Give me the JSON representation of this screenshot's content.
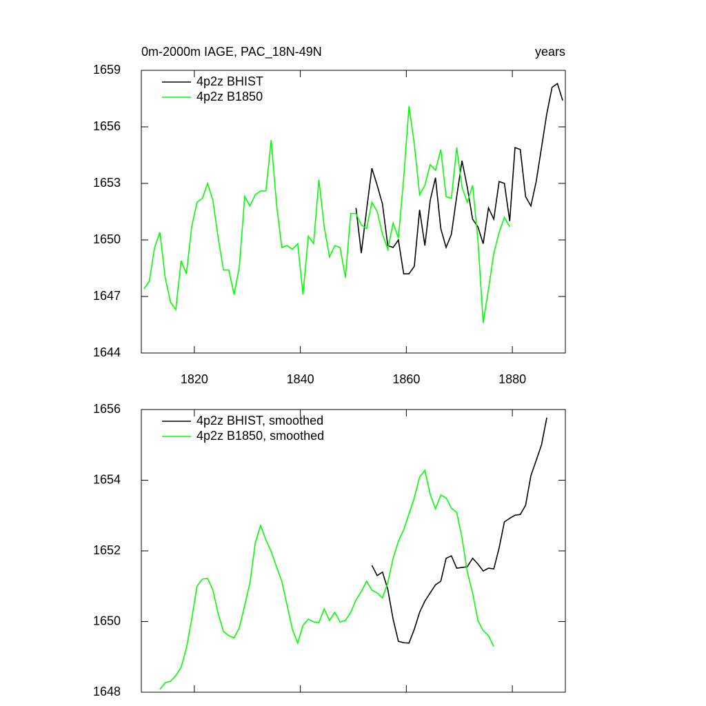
{
  "chart_data": [
    {
      "type": "line",
      "title": "0m-2000m IAGE, PAC_18N-49N",
      "right_title": "years",
      "xlim": [
        1810,
        1890
      ],
      "xticks": [
        1820,
        1840,
        1860,
        1880
      ],
      "ylim": [
        1644,
        1659
      ],
      "yticks": [
        1644,
        1647,
        1650,
        1653,
        1656,
        1659
      ],
      "legend": "upper left",
      "x": [
        1810.5,
        1811.5,
        1812.5,
        1813.5,
        1814.5,
        1815.5,
        1816.5,
        1817.5,
        1818.5,
        1819.5,
        1820.5,
        1821.5,
        1822.5,
        1823.5,
        1824.5,
        1825.5,
        1826.5,
        1827.5,
        1828.5,
        1829.5,
        1830.5,
        1831.5,
        1832.5,
        1833.5,
        1834.5,
        1835.5,
        1836.5,
        1837.5,
        1838.5,
        1839.5,
        1840.5,
        1841.5,
        1842.5,
        1843.5,
        1844.5,
        1845.5,
        1846.5,
        1847.5,
        1848.5,
        1849.5,
        1850.5,
        1851.5,
        1852.5,
        1853.5,
        1854.5,
        1855.5,
        1856.5,
        1857.5,
        1858.5,
        1859.5,
        1860.5,
        1861.5,
        1862.5,
        1863.5,
        1864.5,
        1865.5,
        1866.5,
        1867.5,
        1868.5,
        1869.5,
        1870.5,
        1871.5,
        1872.5,
        1873.5,
        1874.5,
        1875.5,
        1876.5,
        1877.5,
        1878.5,
        1879.5,
        1880.5,
        1881.5,
        1882.5,
        1883.5,
        1884.5,
        1885.5,
        1886.5,
        1887.5,
        1888.5,
        1889.5
      ],
      "series": [
        {
          "name": "4p2z BHIST",
          "color": "#000000",
          "values": [
            null,
            null,
            null,
            null,
            null,
            null,
            null,
            null,
            null,
            null,
            null,
            null,
            null,
            null,
            null,
            null,
            null,
            null,
            null,
            null,
            null,
            null,
            null,
            null,
            null,
            null,
            null,
            null,
            null,
            null,
            null,
            null,
            null,
            null,
            null,
            null,
            null,
            null,
            null,
            null,
            1651.7,
            1649.3,
            1651.6,
            1653.8,
            1652.9,
            1651.9,
            1649.7,
            1649.6,
            1650.0,
            1648.2,
            1648.2,
            1648.6,
            1651.6,
            1649.7,
            1652.1,
            1653.3,
            1650.6,
            1649.6,
            1650.3,
            1652.3,
            1654.2,
            1652.8,
            1651.1,
            1650.7,
            1649.8,
            1651.7,
            1651.1,
            1653.1,
            1653.0,
            1651.0,
            1654.9,
            1654.8,
            1652.3,
            1651.8,
            1653.1,
            1654.9,
            1656.7,
            1658.1,
            1658.3,
            1657.4
          ]
        },
        {
          "name": "4p2z B1850",
          "color": "#00ff00",
          "values": [
            1647.4,
            1647.8,
            1649.6,
            1650.4,
            1648.0,
            1646.7,
            1646.3,
            1648.9,
            1648.2,
            1650.7,
            1652.0,
            1652.2,
            1653.0,
            1652.1,
            1650.1,
            1648.4,
            1648.4,
            1647.1,
            1648.6,
            1652.3,
            1651.8,
            1652.4,
            1652.6,
            1652.6,
            1655.3,
            1651.9,
            1649.6,
            1649.7,
            1649.5,
            1649.8,
            1647.1,
            1650.2,
            1649.8,
            1653.2,
            1650.7,
            1649.1,
            1649.7,
            1649.6,
            1648.0,
            1651.4,
            1651.4,
            1650.8,
            1650.6,
            1652.0,
            1651.5,
            1650.3,
            1649.5,
            1650.9,
            1650.1,
            1653.3,
            1657.1,
            1655.1,
            1652.4,
            1652.9,
            1654.0,
            1653.7,
            1654.8,
            1652.3,
            1652.2,
            1654.9,
            1652.8,
            1652.0,
            1652.9,
            1650.0,
            1645.6,
            1647.4,
            1649.3,
            1650.4,
            1651.2,
            1650.7,
            null,
            null,
            null,
            null,
            null,
            null,
            null,
            null,
            null,
            null
          ]
        }
      ]
    },
    {
      "type": "line",
      "xlim": [
        1810,
        1890
      ],
      "xticks": [
        1820,
        1840,
        1860,
        1880
      ],
      "ylim": [
        1648,
        1656
      ],
      "yticks": [
        1648,
        1650,
        1652,
        1654,
        1656
      ],
      "legend": "upper left",
      "x": [
        1810.5,
        1811.5,
        1812.5,
        1813.5,
        1814.5,
        1815.5,
        1816.5,
        1817.5,
        1818.5,
        1819.5,
        1820.5,
        1821.5,
        1822.5,
        1823.5,
        1824.5,
        1825.5,
        1826.5,
        1827.5,
        1828.5,
        1829.5,
        1830.5,
        1831.5,
        1832.5,
        1833.5,
        1834.5,
        1835.5,
        1836.5,
        1837.5,
        1838.5,
        1839.5,
        1840.5,
        1841.5,
        1842.5,
        1843.5,
        1844.5,
        1845.5,
        1846.5,
        1847.5,
        1848.5,
        1849.5,
        1850.5,
        1851.5,
        1852.5,
        1853.5,
        1854.5,
        1855.5,
        1856.5,
        1857.5,
        1858.5,
        1859.5,
        1860.5,
        1861.5,
        1862.5,
        1863.5,
        1864.5,
        1865.5,
        1866.5,
        1867.5,
        1868.5,
        1869.5,
        1870.5,
        1871.5,
        1872.5,
        1873.5,
        1874.5,
        1875.5,
        1876.5,
        1877.5,
        1878.5,
        1879.5,
        1880.5,
        1881.5,
        1882.5,
        1883.5,
        1884.5,
        1885.5,
        1886.5,
        1887.5,
        1888.5,
        1889.5
      ],
      "series": [
        {
          "name": "4p2z BHIST, smoothed",
          "color": "#000000",
          "values": [
            null,
            null,
            null,
            null,
            null,
            null,
            null,
            null,
            null,
            null,
            null,
            null,
            null,
            null,
            null,
            null,
            null,
            null,
            null,
            null,
            null,
            null,
            null,
            null,
            null,
            null,
            null,
            null,
            null,
            null,
            null,
            null,
            null,
            null,
            null,
            null,
            null,
            null,
            null,
            null,
            null,
            null,
            null,
            1651.59,
            1651.3,
            1651.4,
            1650.91,
            1650.07,
            1649.44,
            1649.4,
            1649.39,
            1649.78,
            1650.26,
            1650.58,
            1650.81,
            1651.04,
            1651.14,
            1651.79,
            1651.86,
            1651.51,
            1651.53,
            1651.55,
            1651.79,
            1651.63,
            1651.43,
            1651.51,
            1651.49,
            1652.08,
            1652.82,
            1652.92,
            1653.01,
            1653.03,
            1653.29,
            1654.13,
            1654.56,
            1655.0,
            1655.77,
            null,
            null,
            null
          ]
        },
        {
          "name": "4p2z B1850, smoothed",
          "color": "#00ff00",
          "values": [
            null,
            null,
            null,
            1648.08,
            1648.27,
            1648.31,
            1648.47,
            1648.7,
            1649.25,
            1650.07,
            1651.0,
            1651.2,
            1651.22,
            1650.89,
            1650.22,
            1649.72,
            1649.6,
            1649.54,
            1649.83,
            1650.46,
            1651.1,
            1652.23,
            1652.72,
            1652.31,
            1651.98,
            1651.55,
            1651.14,
            1650.46,
            1649.78,
            1649.39,
            1649.89,
            1650.07,
            1649.99,
            1649.97,
            1650.36,
            1650.03,
            1650.26,
            1649.99,
            1650.03,
            1650.26,
            1650.61,
            1650.85,
            1651.14,
            1650.89,
            1650.81,
            1650.67,
            1651.1,
            1651.79,
            1652.27,
            1652.6,
            1653.05,
            1653.5,
            1654.09,
            1654.28,
            1653.6,
            1653.19,
            1653.58,
            1653.5,
            1653.21,
            1653.09,
            1652.37,
            1651.4,
            1650.81,
            1650.03,
            1649.74,
            1649.6,
            1649.29,
            null,
            null,
            null,
            null,
            null,
            null,
            null,
            null,
            null,
            null,
            null,
            null,
            null
          ]
        }
      ]
    }
  ]
}
